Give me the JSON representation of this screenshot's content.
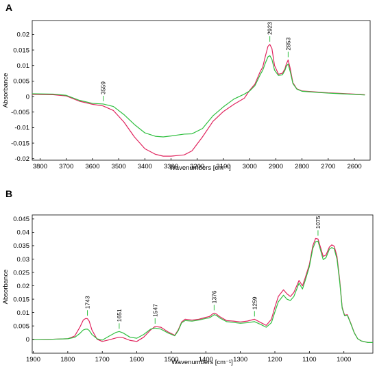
{
  "colors": {
    "red": "#e0245e",
    "green": "#2fbf3f"
  },
  "chart_data": [
    {
      "panel": "A",
      "type": "line",
      "xlabel": "Wavenumbers [cm⁻¹]",
      "ylabel": "Absorbance",
      "xlim": [
        3830,
        2540
      ],
      "ylim": [
        -0.0205,
        0.0245
      ],
      "x_ticks": [
        3800,
        3700,
        3600,
        3500,
        3400,
        3300,
        3200,
        3100,
        3000,
        2900,
        2800,
        2700,
        2600
      ],
      "x_tick_labels": [
        "3800",
        "3700",
        "3600",
        "3500",
        "3400",
        "3300",
        "3200",
        "3100",
        "3000",
        "2900",
        "2800",
        "2700",
        "2600"
      ],
      "y_ticks": [
        0.02,
        0.015,
        0.01,
        0.005,
        0,
        -0.005,
        -0.01,
        -0.015,
        -0.02
      ],
      "y_tick_labels": [
        "0.02",
        "0.015",
        "0.01",
        "0.005",
        "0",
        "-0.005",
        "-0.01",
        "-0.015",
        "-0.02"
      ],
      "series": [
        {
          "color": "#e0245e",
          "x": [
            3830,
            3750,
            3700,
            3650,
            3600,
            3560,
            3520,
            3480,
            3440,
            3400,
            3360,
            3330,
            3300,
            3250,
            3220,
            3180,
            3140,
            3100,
            3060,
            3020,
            3000,
            2980,
            2960,
            2950,
            2940,
            2930,
            2923,
            2915,
            2905,
            2890,
            2875,
            2865,
            2860,
            2853,
            2845,
            2835,
            2820,
            2800,
            2750,
            2700,
            2650,
            2600,
            2560
          ],
          "y": [
            0.0007,
            0.0006,
            0.0002,
            -0.0015,
            -0.0025,
            -0.003,
            -0.0045,
            -0.0082,
            -0.013,
            -0.0168,
            -0.0186,
            -0.0192,
            -0.0192,
            -0.0188,
            -0.0175,
            -0.013,
            -0.008,
            -0.0048,
            -0.0025,
            -0.0005,
            0.002,
            0.004,
            0.008,
            0.0095,
            0.013,
            0.0162,
            0.0168,
            0.0155,
            0.01,
            0.0072,
            0.0075,
            0.009,
            0.0105,
            0.0118,
            0.009,
            0.0045,
            0.0025,
            0.0018,
            0.0015,
            0.0012,
            0.001,
            0.0008,
            0.0006
          ]
        },
        {
          "color": "#2fbf3f",
          "x": [
            3830,
            3750,
            3700,
            3650,
            3600,
            3559,
            3520,
            3480,
            3440,
            3400,
            3360,
            3330,
            3300,
            3250,
            3220,
            3180,
            3140,
            3100,
            3060,
            3020,
            3000,
            2980,
            2960,
            2950,
            2940,
            2930,
            2923,
            2915,
            2905,
            2890,
            2875,
            2865,
            2860,
            2853,
            2845,
            2835,
            2820,
            2800,
            2750,
            2700,
            2650,
            2600,
            2560
          ],
          "y": [
            0.0009,
            0.0008,
            0.0004,
            -0.0012,
            -0.0022,
            -0.0024,
            -0.0032,
            -0.0058,
            -0.009,
            -0.0117,
            -0.0128,
            -0.013,
            -0.0127,
            -0.0121,
            -0.012,
            -0.0103,
            -0.0062,
            -0.0033,
            -0.0008,
            0.0008,
            0.0018,
            0.0035,
            0.007,
            0.0085,
            0.0108,
            0.0128,
            0.0132,
            0.012,
            0.0085,
            0.0068,
            0.007,
            0.0085,
            0.0098,
            0.0105,
            0.008,
            0.0042,
            0.0024,
            0.0017,
            0.0014,
            0.0011,
            0.0009,
            0.0007,
            0.0005
          ]
        }
      ],
      "annotations": [
        {
          "label": "3559",
          "x": 3559,
          "y": -0.0024
        },
        {
          "label": "2923",
          "x": 2923,
          "y": 0.0168
        },
        {
          "label": "2853",
          "x": 2853,
          "y": 0.0118
        }
      ]
    },
    {
      "panel": "B",
      "type": "line",
      "xlabel": "Wavenumbers [cm⁻¹]",
      "ylabel": "Absorbance",
      "xlim": [
        1903,
        916
      ],
      "ylim": [
        -0.0052,
        0.0465
      ],
      "x_ticks": [
        1900,
        1800,
        1700,
        1600,
        1500,
        1400,
        1300,
        1200,
        1100,
        1000
      ],
      "x_tick_labels": [
        "1900",
        "1800",
        "1700",
        "1600",
        "1500",
        "1400",
        "1300",
        "1200",
        "1100",
        "1000"
      ],
      "y_ticks": [
        0.045,
        0.04,
        0.035,
        0.03,
        0.025,
        0.02,
        0.015,
        0.01,
        0.005,
        0
      ],
      "y_tick_labels": [
        "0.045",
        "0.04",
        "0.035",
        "0.03",
        "0.025",
        "0.02",
        "0.015",
        "0.01",
        "0.005",
        "0"
      ],
      "series": [
        {
          "color": "#e0245e",
          "x": [
            1903,
            1850,
            1800,
            1780,
            1765,
            1755,
            1748,
            1743,
            1738,
            1730,
            1715,
            1700,
            1680,
            1660,
            1651,
            1640,
            1620,
            1600,
            1580,
            1560,
            1547,
            1530,
            1510,
            1490,
            1480,
            1470,
            1460,
            1440,
            1420,
            1400,
            1390,
            1380,
            1376,
            1370,
            1360,
            1340,
            1320,
            1300,
            1280,
            1259,
            1240,
            1225,
            1210,
            1200,
            1190,
            1175,
            1165,
            1155,
            1145,
            1130,
            1120,
            1112,
            1100,
            1090,
            1082,
            1075,
            1068,
            1060,
            1052,
            1042,
            1035,
            1028,
            1020,
            1012,
            1005,
            998,
            990,
            980,
            970,
            960,
            950,
            930,
            916
          ],
          "y": [
            -0.0001,
            0.0,
            0.0002,
            0.0012,
            0.0045,
            0.0072,
            0.0078,
            0.0077,
            0.0068,
            0.0035,
            0.0,
            -0.0008,
            -0.0002,
            0.0005,
            0.0008,
            0.0006,
            -0.0004,
            -0.0008,
            0.0008,
            0.0035,
            0.0048,
            0.0045,
            0.0028,
            0.0015,
            0.0035,
            0.0065,
            0.0075,
            0.0072,
            0.0075,
            0.0082,
            0.0085,
            0.0095,
            0.0098,
            0.0095,
            0.0085,
            0.007,
            0.0068,
            0.0065,
            0.0068,
            0.0075,
            0.0062,
            0.0052,
            0.0075,
            0.012,
            0.016,
            0.0185,
            0.017,
            0.016,
            0.0175,
            0.022,
            0.02,
            0.023,
            0.028,
            0.035,
            0.0377,
            0.0375,
            0.0345,
            0.031,
            0.0315,
            0.0345,
            0.0353,
            0.0348,
            0.031,
            0.022,
            0.012,
            0.009,
            0.0092,
            0.006,
            0.0025,
            0.0002,
            -0.0006,
            -0.0012,
            -0.0012
          ]
        },
        {
          "color": "#2fbf3f",
          "x": [
            1903,
            1850,
            1800,
            1780,
            1765,
            1755,
            1748,
            1743,
            1738,
            1730,
            1715,
            1700,
            1680,
            1660,
            1651,
            1640,
            1620,
            1600,
            1580,
            1560,
            1547,
            1530,
            1510,
            1490,
            1480,
            1470,
            1460,
            1440,
            1420,
            1400,
            1390,
            1380,
            1376,
            1370,
            1360,
            1340,
            1320,
            1300,
            1280,
            1259,
            1240,
            1225,
            1210,
            1200,
            1190,
            1175,
            1165,
            1155,
            1145,
            1130,
            1120,
            1112,
            1100,
            1090,
            1082,
            1075,
            1068,
            1060,
            1052,
            1042,
            1035,
            1028,
            1020,
            1012,
            1005,
            998,
            990,
            980,
            970,
            960,
            950,
            930,
            916
          ],
          "y": [
            -0.0001,
            0.0,
            0.0002,
            0.0007,
            0.0022,
            0.0035,
            0.0038,
            0.0038,
            0.0033,
            0.0018,
            0.0002,
            -0.0003,
            0.0012,
            0.0026,
            0.0029,
            0.0024,
            0.0008,
            0.0004,
            0.0018,
            0.0038,
            0.0042,
            0.0038,
            0.0024,
            0.0013,
            0.0032,
            0.0062,
            0.007,
            0.0068,
            0.0072,
            0.0078,
            0.008,
            0.0088,
            0.0092,
            0.009,
            0.008,
            0.0066,
            0.0063,
            0.006,
            0.0062,
            0.0066,
            0.0055,
            0.0045,
            0.0062,
            0.0102,
            0.014,
            0.0165,
            0.015,
            0.0145,
            0.016,
            0.021,
            0.0188,
            0.022,
            0.0272,
            0.034,
            0.0365,
            0.0367,
            0.0335,
            0.0298,
            0.0305,
            0.0337,
            0.0343,
            0.0338,
            0.03,
            0.0213,
            0.0116,
            0.0088,
            0.009,
            0.0058,
            0.0024,
            0.0002,
            -0.0006,
            -0.0012,
            -0.0012
          ]
        }
      ],
      "annotations": [
        {
          "label": "1743",
          "x": 1743,
          "y": 0.0078
        },
        {
          "label": "1651",
          "x": 1651,
          "y": 0.0029
        },
        {
          "label": "1547",
          "x": 1547,
          "y": 0.0048
        },
        {
          "label": "1376",
          "x": 1376,
          "y": 0.0098
        },
        {
          "label": "1259",
          "x": 1259,
          "y": 0.0075
        },
        {
          "label": "1075",
          "x": 1075,
          "y": 0.0377
        }
      ]
    }
  ]
}
